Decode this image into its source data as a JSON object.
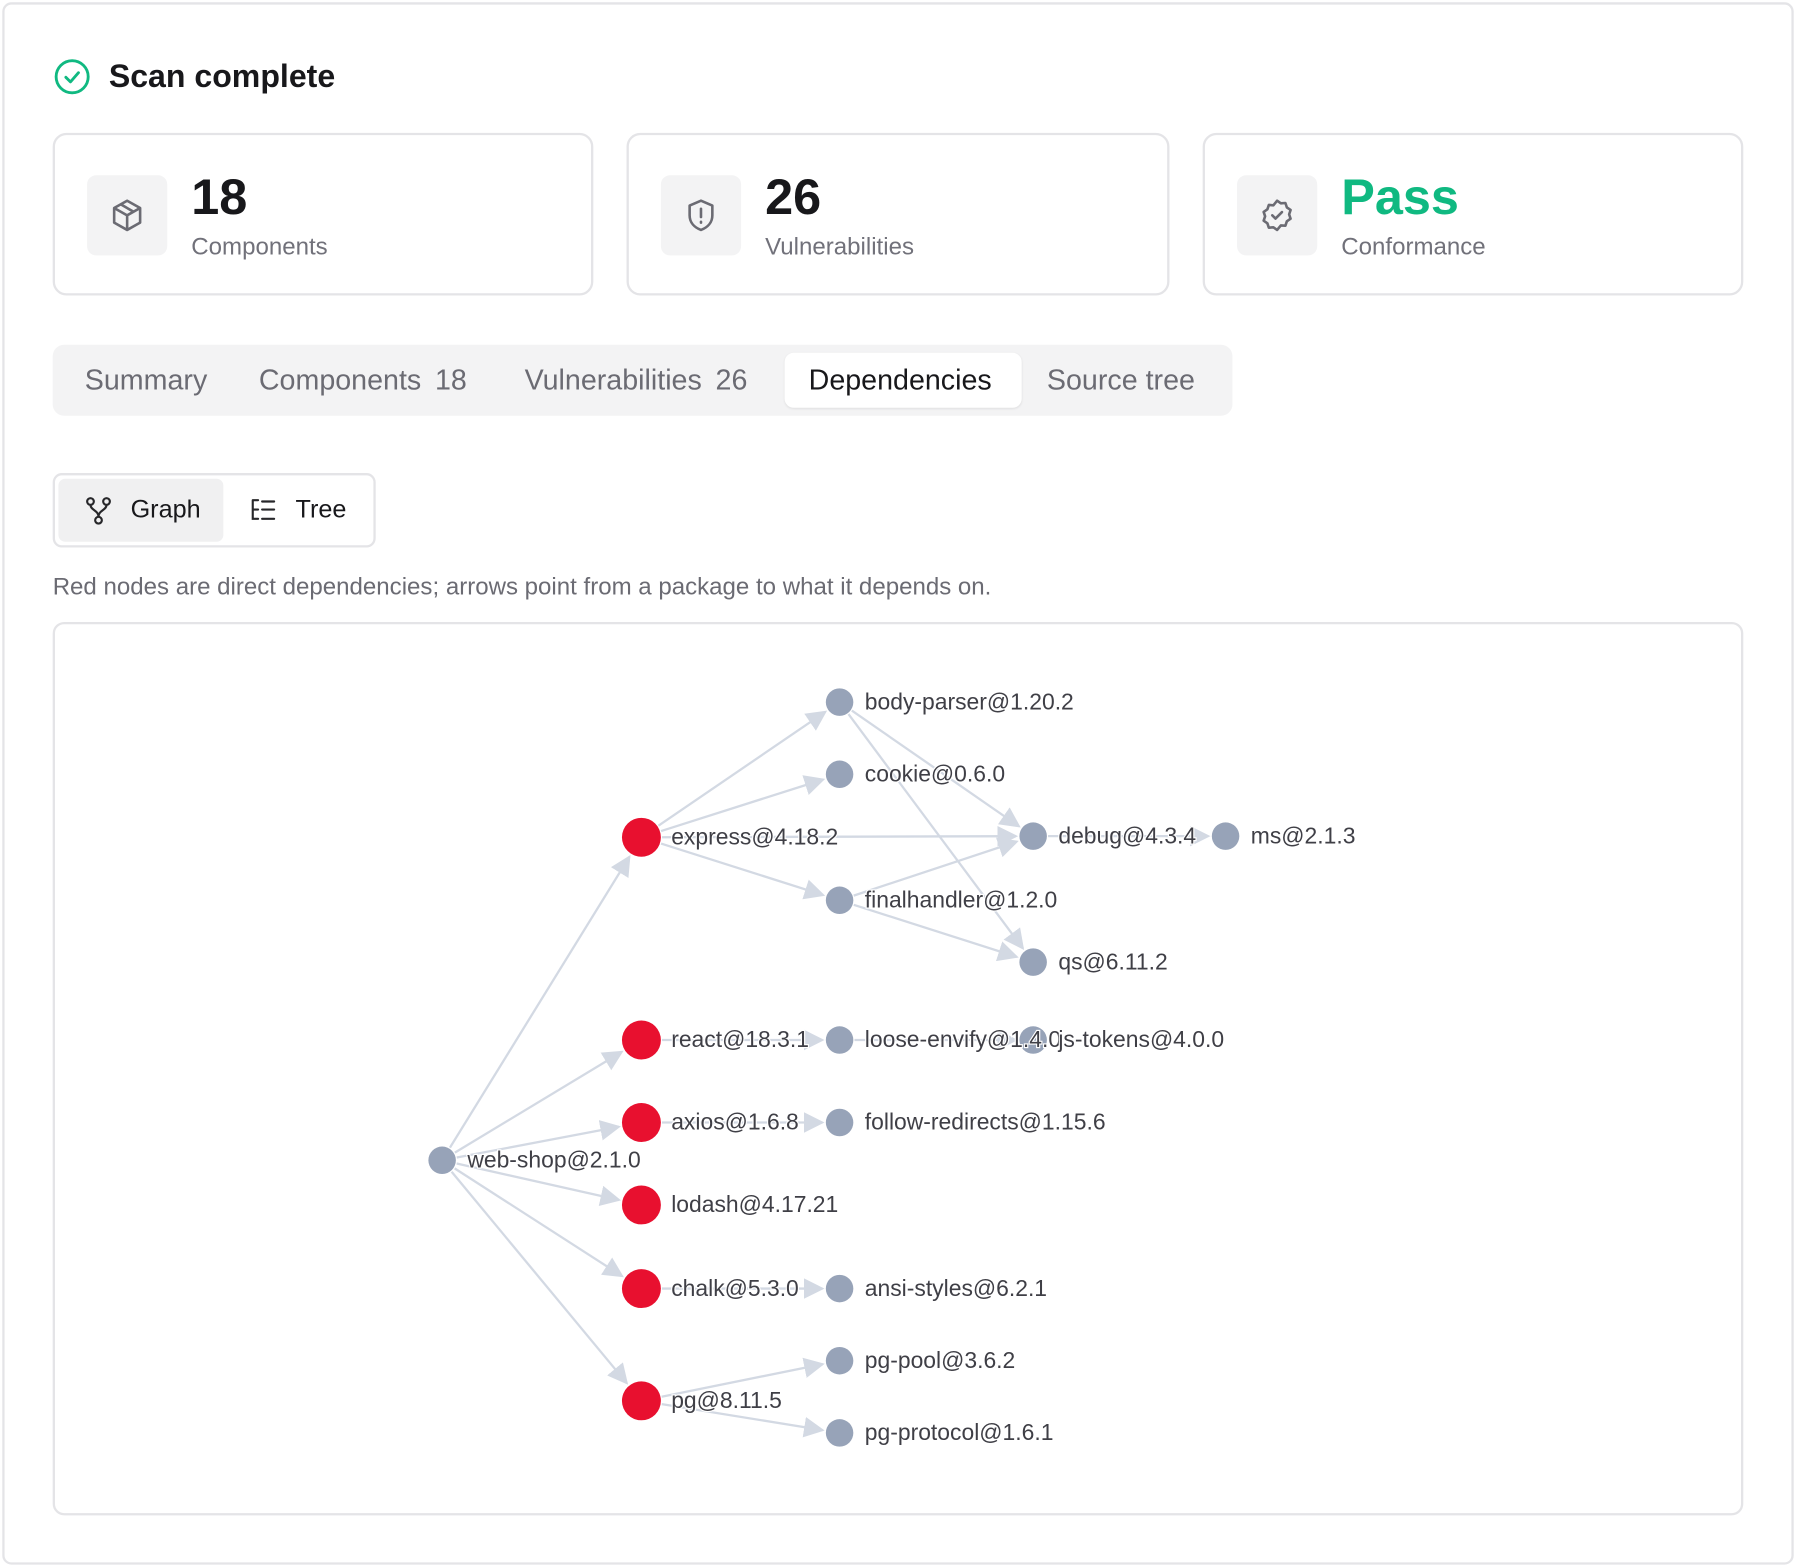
{
  "header": {
    "title": "Scan complete"
  },
  "stats": [
    {
      "value": 18,
      "label": "Components"
    },
    {
      "value": 26,
      "label": "Vulnerabilities"
    },
    {
      "value": "Pass",
      "label": "Conformance"
    }
  ],
  "tabs": [
    {
      "label": "Summary"
    },
    {
      "label": "Components",
      "count": 18
    },
    {
      "label": "Vulnerabilities",
      "count": 26
    },
    {
      "label": "Dependencies",
      "active": true
    },
    {
      "label": "Source tree"
    }
  ],
  "view_toggle": [
    {
      "label": "Graph",
      "active": true
    },
    {
      "label": "Tree"
    }
  ],
  "caption": "Red nodes are direct dependencies; arrows point from a package to what it depends on.",
  "graph": {
    "nodes": [
      {
        "label": "web-shop@2.1.0",
        "direct": false
      },
      {
        "label": "express@4.18.2",
        "direct": true
      },
      {
        "label": "react@18.3.1",
        "direct": true
      },
      {
        "label": "axios@1.6.8",
        "direct": true
      },
      {
        "label": "lodash@4.17.21",
        "direct": true
      },
      {
        "label": "chalk@5.3.0",
        "direct": true
      },
      {
        "label": "pg@8.11.5",
        "direct": true
      },
      {
        "label": "body-parser@1.20.2",
        "direct": false
      },
      {
        "label": "cookie@0.6.0",
        "direct": false
      },
      {
        "label": "finalhandler@1.2.0",
        "direct": false
      },
      {
        "label": "debug@4.3.4",
        "direct": false
      },
      {
        "label": "qs@6.11.2",
        "direct": false
      },
      {
        "label": "ms@2.1.3",
        "direct": false
      },
      {
        "label": "loose-envify@1.4.0",
        "direct": false
      },
      {
        "label": "js-tokens@4.0.0",
        "direct": false
      },
      {
        "label": "follow-redirects@1.15.6",
        "direct": false
      },
      {
        "label": "ansi-styles@6.2.1",
        "direct": false
      },
      {
        "label": "pg-pool@3.6.2",
        "direct": false
      },
      {
        "label": "pg-protocol@1.6.1",
        "direct": false
      }
    ]
  }
}
